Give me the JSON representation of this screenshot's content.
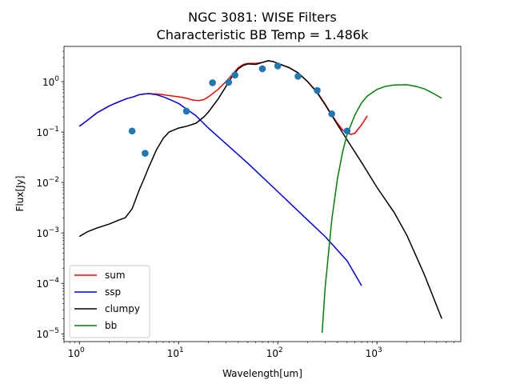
{
  "chart_data": {
    "type": "line",
    "title": "NGC 3081: WISE Filters",
    "subtitle": "Characteristic BB Temp = 1.486k",
    "xlabel": "Wavelength[um]",
    "ylabel": "Flux[Jy]",
    "xscale": "log",
    "yscale": "log",
    "xlim": [
      0.7,
      7000
    ],
    "ylim": [
      7e-06,
      5
    ],
    "xticks": [
      {
        "value": 1,
        "base": "10",
        "exp": "0"
      },
      {
        "value": 10,
        "base": "10",
        "exp": "1"
      },
      {
        "value": 100,
        "base": "10",
        "exp": "2"
      },
      {
        "value": 1000,
        "base": "10",
        "exp": "3"
      }
    ],
    "yticks": [
      {
        "value": 1e-05,
        "base": "10",
        "exp": "−5"
      },
      {
        "value": 0.0001,
        "base": "10",
        "exp": "−4"
      },
      {
        "value": 0.001,
        "base": "10",
        "exp": "−3"
      },
      {
        "value": 0.01,
        "base": "10",
        "exp": "−2"
      },
      {
        "value": 0.1,
        "base": "10",
        "exp": "−1"
      },
      {
        "value": 1,
        "base": "10",
        "exp": "0"
      }
    ],
    "legend_position": "lower-left",
    "series": [
      {
        "name": "sum",
        "color": "#ff0000",
        "points": [
          [
            1.0,
            0.13
          ],
          [
            1.2,
            0.17
          ],
          [
            1.5,
            0.24
          ],
          [
            2.0,
            0.33
          ],
          [
            2.5,
            0.4
          ],
          [
            3.0,
            0.46
          ],
          [
            3.5,
            0.5
          ],
          [
            4.0,
            0.55
          ],
          [
            4.5,
            0.57
          ],
          [
            5.0,
            0.58
          ],
          [
            6.0,
            0.57
          ],
          [
            7.0,
            0.55
          ],
          [
            8.0,
            0.53
          ],
          [
            10.0,
            0.5
          ],
          [
            12.0,
            0.47
          ],
          [
            14.0,
            0.43
          ],
          [
            16.0,
            0.42
          ],
          [
            18.0,
            0.44
          ],
          [
            20.0,
            0.5
          ],
          [
            25.0,
            0.7
          ],
          [
            30.0,
            1.0
          ],
          [
            35.0,
            1.4
          ],
          [
            40.0,
            1.9
          ],
          [
            45.0,
            2.2
          ],
          [
            50.0,
            2.3
          ],
          [
            60.0,
            2.3
          ],
          [
            70.0,
            2.4
          ],
          [
            80.0,
            2.6
          ],
          [
            90.0,
            2.5
          ],
          [
            100.0,
            2.3
          ],
          [
            130.0,
            1.9
          ],
          [
            160.0,
            1.5
          ],
          [
            200.0,
            1.0
          ],
          [
            250.0,
            0.62
          ],
          [
            300.0,
            0.36
          ],
          [
            350.0,
            0.22
          ],
          [
            400.0,
            0.15
          ],
          [
            450.0,
            0.11
          ],
          [
            500.0,
            0.095
          ],
          [
            550.0,
            0.09
          ],
          [
            600.0,
            0.095
          ],
          [
            700.0,
            0.14
          ],
          [
            800.0,
            0.21
          ]
        ]
      },
      {
        "name": "ssp",
        "color": "#0000ee",
        "points": [
          [
            1.0,
            0.13
          ],
          [
            1.2,
            0.17
          ],
          [
            1.5,
            0.24
          ],
          [
            2.0,
            0.33
          ],
          [
            2.5,
            0.4
          ],
          [
            3.0,
            0.46
          ],
          [
            3.5,
            0.5
          ],
          [
            4.0,
            0.55
          ],
          [
            4.5,
            0.57
          ],
          [
            5.0,
            0.58
          ],
          [
            6.0,
            0.55
          ],
          [
            7.0,
            0.5
          ],
          [
            8.0,
            0.45
          ],
          [
            10.0,
            0.37
          ],
          [
            15.0,
            0.21
          ],
          [
            20.0,
            0.12
          ],
          [
            50.0,
            0.024
          ],
          [
            100.0,
            0.0066
          ],
          [
            200.0,
            0.0018
          ],
          [
            300.0,
            0.00085
          ],
          [
            500.0,
            0.00028
          ],
          [
            700.0,
            9e-05
          ]
        ]
      },
      {
        "name": "clumpy",
        "color": "#000000",
        "points": [
          [
            1.0,
            0.00085
          ],
          [
            1.2,
            0.00105
          ],
          [
            1.5,
            0.00125
          ],
          [
            2.0,
            0.0015
          ],
          [
            2.5,
            0.0018
          ],
          [
            2.9,
            0.002
          ],
          [
            3.4,
            0.003
          ],
          [
            4.0,
            0.007
          ],
          [
            4.5,
            0.012
          ],
          [
            5.0,
            0.02
          ],
          [
            6.0,
            0.045
          ],
          [
            7.0,
            0.075
          ],
          [
            8.0,
            0.1
          ],
          [
            9.0,
            0.11
          ],
          [
            10.0,
            0.12
          ],
          [
            12.0,
            0.13
          ],
          [
            15.0,
            0.15
          ],
          [
            18.0,
            0.2
          ],
          [
            20.0,
            0.25
          ],
          [
            25.0,
            0.45
          ],
          [
            30.0,
            0.8
          ],
          [
            35.0,
            1.3
          ],
          [
            40.0,
            1.8
          ],
          [
            45.0,
            2.1
          ],
          [
            50.0,
            2.25
          ],
          [
            60.0,
            2.2
          ],
          [
            70.0,
            2.4
          ],
          [
            80.0,
            2.6
          ],
          [
            90.0,
            2.5
          ],
          [
            100.0,
            2.3
          ],
          [
            130.0,
            1.9
          ],
          [
            160.0,
            1.5
          ],
          [
            200.0,
            1.0
          ],
          [
            250.0,
            0.6
          ],
          [
            300.0,
            0.35
          ],
          [
            400.0,
            0.14
          ],
          [
            500.0,
            0.07
          ],
          [
            700.0,
            0.025
          ],
          [
            1000.0,
            0.008
          ],
          [
            1500.0,
            0.0025
          ],
          [
            2000.0,
            0.0009
          ],
          [
            3000.0,
            0.00015
          ],
          [
            4500.0,
            2e-05
          ]
        ]
      },
      {
        "name": "bb",
        "color": "#008000",
        "points": [
          [
            280,
            1.05e-05
          ],
          [
            300,
            8e-05
          ],
          [
            350,
            0.0018
          ],
          [
            400,
            0.012
          ],
          [
            450,
            0.04
          ],
          [
            500,
            0.09
          ],
          [
            600,
            0.22
          ],
          [
            700,
            0.38
          ],
          [
            800,
            0.52
          ],
          [
            1000,
            0.7
          ],
          [
            1200,
            0.8
          ],
          [
            1500,
            0.86
          ],
          [
            2000,
            0.87
          ],
          [
            2500,
            0.8
          ],
          [
            3000,
            0.72
          ],
          [
            3500,
            0.62
          ],
          [
            4500,
            0.47
          ]
        ]
      }
    ],
    "scatter": {
      "name": "",
      "color": "#1f77b4",
      "points": [
        [
          3.4,
          0.105
        ],
        [
          4.6,
          0.038
        ],
        [
          12.0,
          0.26
        ],
        [
          22.0,
          0.95
        ],
        [
          32.0,
          0.97
        ],
        [
          37.0,
          1.35
        ],
        [
          70.0,
          1.8
        ],
        [
          100.0,
          2.05
        ],
        [
          160.0,
          1.28
        ],
        [
          250.0,
          0.67
        ],
        [
          350.0,
          0.23
        ],
        [
          500.0,
          0.105
        ]
      ]
    }
  }
}
